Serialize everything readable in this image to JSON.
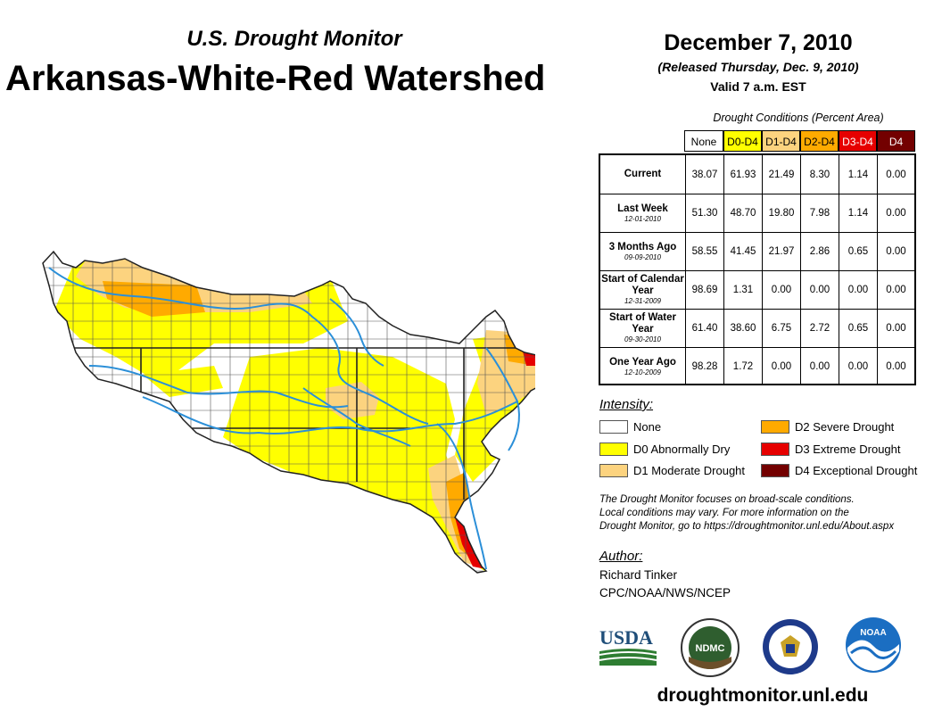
{
  "header": {
    "subtitle": "U.S. Drought Monitor",
    "title": "Arkansas-White-Red Watershed",
    "date": "December 7, 2010",
    "released": "(Released Thursday, Dec. 9, 2010)",
    "valid": "Valid 7 a.m. EST"
  },
  "table": {
    "caption": "Drought Conditions (Percent Area)",
    "columns": [
      {
        "label": "None",
        "bg": "#ffffff",
        "fg": "#000000"
      },
      {
        "label": "D0-D4",
        "bg": "#ffff00",
        "fg": "#000000"
      },
      {
        "label": "D1-D4",
        "bg": "#fcd37f",
        "fg": "#000000"
      },
      {
        "label": "D2-D4",
        "bg": "#ffaa00",
        "fg": "#000000"
      },
      {
        "label": "D3-D4",
        "bg": "#e60000",
        "fg": "#ffffff"
      },
      {
        "label": "D4",
        "bg": "#730000",
        "fg": "#ffffff"
      }
    ],
    "rows": [
      {
        "label": "Current",
        "date": "",
        "values": [
          "38.07",
          "61.93",
          "21.49",
          "8.30",
          "1.14",
          "0.00"
        ]
      },
      {
        "label": "Last Week",
        "date": "12-01-2010",
        "values": [
          "51.30",
          "48.70",
          "19.80",
          "7.98",
          "1.14",
          "0.00"
        ]
      },
      {
        "label": "3 Months Ago",
        "date": "09-09-2010",
        "values": [
          "58.55",
          "41.45",
          "21.97",
          "2.86",
          "0.65",
          "0.00"
        ]
      },
      {
        "label": "Start of Calendar Year",
        "date": "12-31-2009",
        "values": [
          "98.69",
          "1.31",
          "0.00",
          "0.00",
          "0.00",
          "0.00"
        ]
      },
      {
        "label": "Start of Water Year",
        "date": "09-30-2010",
        "values": [
          "61.40",
          "38.60",
          "6.75",
          "2.72",
          "0.65",
          "0.00"
        ]
      },
      {
        "label": "One Year Ago",
        "date": "12-10-2009",
        "values": [
          "98.28",
          "1.72",
          "0.00",
          "0.00",
          "0.00",
          "0.00"
        ]
      }
    ]
  },
  "legend": {
    "title": "Intensity:",
    "items": [
      {
        "label": "None",
        "color": "#ffffff"
      },
      {
        "label": "D0 Abnormally Dry",
        "color": "#ffff00"
      },
      {
        "label": "D1 Moderate Drought",
        "color": "#fcd37f"
      },
      {
        "label": "D2 Severe Drought",
        "color": "#ffaa00"
      },
      {
        "label": "D3 Extreme Drought",
        "color": "#e60000"
      },
      {
        "label": "D4 Exceptional Drought",
        "color": "#730000"
      }
    ]
  },
  "note": {
    "line1": "The Drought Monitor focuses on broad-scale conditions.",
    "line2": "Local conditions may vary. For more information on the",
    "line3": "Drought Monitor, go to https://droughtmonitor.unl.edu/About.aspx"
  },
  "author": {
    "label": "Author:",
    "name": "Richard Tinker",
    "org": "CPC/NOAA/NWS/NCEP"
  },
  "logos": {
    "usda": "USDA",
    "ndmc": "NDMC",
    "noaa": "NOAA"
  },
  "footer": {
    "url": "droughtmonitor.unl.edu"
  },
  "map": {
    "river_color": "#2b8fd8",
    "border_color": "#444444"
  }
}
